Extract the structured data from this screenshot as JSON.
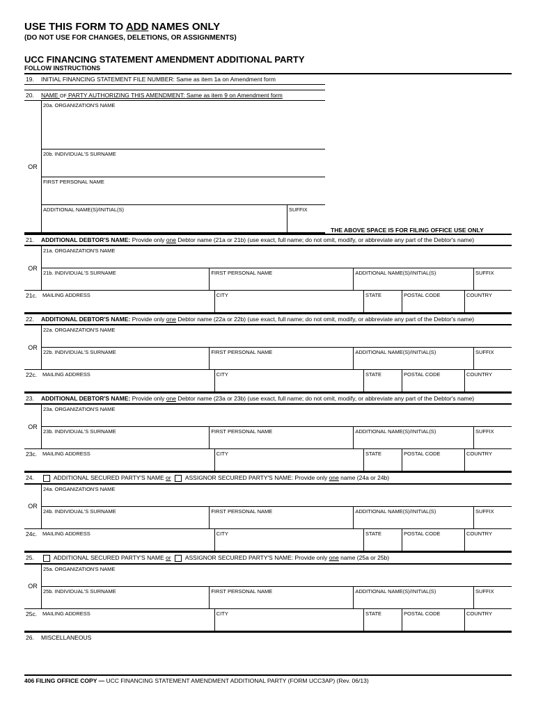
{
  "header": {
    "title_pre": "USE THIS FORM TO ",
    "title_u": "ADD",
    "title_post": " NAMES ONLY",
    "sub": "(DO NOT USE FOR CHANGES, DELETIONS, OR ASSIGNMENTS)",
    "title2": "UCC FINANCING STATEMENT AMENDMENT ADDITIONAL PARTY",
    "follow": "FOLLOW INSTRUCTIONS",
    "filing_note": "THE ABOVE SPACE IS FOR  FILING OFFICE  USE  ONLY"
  },
  "item19": {
    "num": "19.",
    "label": "INITIAL FINANCING STATEMENT FILE NUMBER:   Same as item 1a on Amendment form"
  },
  "item20": {
    "num": "20.",
    "label_pre": "NAME ",
    "label_of": "OF",
    "label_post": " PARTY AUTHORIZING THIS AMENDMENT:  Same as item 9 on Amendment form",
    "a": "20a. ORGANIZATION'S NAME",
    "b": "20b. INDIVIDUAL'S SURNAME",
    "fpn": "FIRST PERSONAL NAME",
    "addl": "ADDITIONAL NAME(S)/INITIAL(S)",
    "sfx": "SUFFIX",
    "or": "OR"
  },
  "debtors": [
    {
      "num": "21.",
      "hdr_pre": "ADDITIONAL DEBTOR'S NAME:  ",
      "hdr_mid": "Provide only ",
      "hdr_u": "one",
      "hdr_post": " Debtor name (21a or 21b) (use exact, full name; do not omit, modify, or abbreviate any part of the Debtor's name)",
      "a": "21a. ORGANIZATION'S NAME",
      "b": "21b. INDIVIDUAL'S SURNAME",
      "cnum": "21c.",
      "addr": "MAILING ADDRESS"
    },
    {
      "num": "22.",
      "hdr_pre": "ADDITIONAL DEBTOR'S NAME:  ",
      "hdr_mid": "Provide only ",
      "hdr_u": "one",
      "hdr_post": " Debtor name (22a or 22b) (use exact, full name; do not omit, modify, or abbreviate any part of the Debtor's name)",
      "a": "22a. ORGANIZATION'S NAME",
      "b": "22b. INDIVIDUAL'S SURNAME",
      "cnum": "22c.",
      "addr": "MAILING ADDRESS"
    },
    {
      "num": "23.",
      "hdr_pre": "ADDITIONAL DEBTOR'S NAME:  ",
      "hdr_mid": "Provide only ",
      "hdr_u": "one",
      "hdr_post": " Debtor name (23a or 23b) (use exact, full name; do not omit, modify, or abbreviate any part of the Debtor's name)",
      "a": "23a. ORGANIZATION'S NAME",
      "b": "23b. INDIVIDUAL'S SURNAME",
      "cnum": "23c.",
      "addr": "MAILING ADDRESS"
    }
  ],
  "secured": [
    {
      "num": "24.",
      "opt1": "ADDITIONAL SECURED PARTY'S NAME",
      "or_lbl": "or",
      "opt2": "ASSIGNOR SECURED PARTY'S NAME:",
      "tail_pre": "Provide only ",
      "tail_u": "one",
      "tail_post": " name (24a or 24b)",
      "a": "24a. ORGANIZATION'S NAME",
      "b": "24b. INDIVIDUAL'S SURNAME",
      "cnum": "24c.",
      "addr": "MAILING ADDRESS"
    },
    {
      "num": "25.",
      "opt1": "ADDITIONAL SECURED PARTY'S NAME",
      "or_lbl": "or",
      "opt2": "ASSIGNOR SECURED PARTY'S NAME:",
      "tail_pre": "Provide only ",
      "tail_u": "one",
      "tail_post": " name (25a or 25b)",
      "a": "25a. ORGANIZATION'S NAME",
      "b": "25b. INDIVIDUAL'S SURNAME",
      "cnum": "25c.",
      "addr": "MAILING ADDRESS"
    }
  ],
  "common": {
    "or": "OR",
    "fpn": "FIRST PERSONAL NAME",
    "addl": "ADDITIONAL NAME(S)/INITIAL(S)",
    "sfx": "SUFFIX",
    "city": "CITY",
    "state": "STATE",
    "postal": "POSTAL CODE",
    "country": "COUNTRY"
  },
  "item26": {
    "num": "26.",
    "label": "MISCELLANEOUS"
  },
  "footer": {
    "pre": "406 FILING OFFICE COPY — ",
    "mid": "UCC FINANCING STATEMENT AMENDMENT ADDITIONAL PARTY (FORM UCC3AP) (Rev. 06/13)"
  }
}
